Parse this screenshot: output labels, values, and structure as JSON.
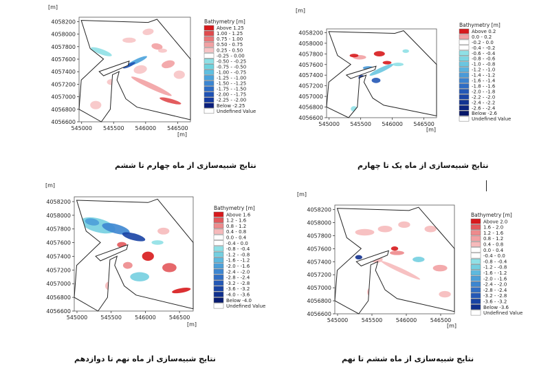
{
  "panels": [
    {
      "id": "p1",
      "unit_x": "[m]",
      "unit_y": "[m]",
      "xticks": [
        "545000",
        "545500",
        "546000",
        "546500"
      ],
      "yticks": [
        "4058200",
        "4058000",
        "4057800",
        "4057600",
        "4057400",
        "4057200",
        "4057000",
        "4056800",
        "4056600"
      ],
      "legend_title": "Bathymetry [m]",
      "legend": [
        {
          "label": "Above   1.25",
          "color": "#d7191c"
        },
        {
          "label": "1.00 -  1.25",
          "color": "#e04a4d"
        },
        {
          "label": "0.75 -  1.00",
          "color": "#ea7679"
        },
        {
          "label": "0.50 -  0.75",
          "color": "#f2a1a3"
        },
        {
          "label": "0.25 -  0.50",
          "color": "#f7c4c5"
        },
        {
          "label": "-0.25 -  0.00",
          "color": "#ffffff"
        },
        {
          "label": "-0.50 - -0.25",
          "color": "#8fe0e6"
        },
        {
          "label": "-0.75 - -0.50",
          "color": "#6fd3de"
        },
        {
          "label": "-1.00 - -0.75",
          "color": "#5fbfe0"
        },
        {
          "label": "-1.25 - -1.00",
          "color": "#4aa2dc"
        },
        {
          "label": "-1.50 - -1.25",
          "color": "#3b86d2"
        },
        {
          "label": "-1.75 - -1.50",
          "color": "#2c6cc6"
        },
        {
          "label": "-2.00 - -1.75",
          "color": "#1f52b4"
        },
        {
          "label": "-2.25 - -2.00",
          "color": "#143aa0"
        },
        {
          "label": "Below  -2.25",
          "color": "#0a1f7c"
        },
        {
          "label": "Undefined Value",
          "color": "#ffffff"
        }
      ],
      "caption": "نتایج شبیه‌سازی از ماه چهارم تا ششم"
    },
    {
      "id": "p2",
      "unit_x": "[m]",
      "unit_y": "[m]",
      "xticks": [
        "545000",
        "545500",
        "546000",
        "546500"
      ],
      "yticks": [
        "4058200",
        "4058000",
        "4057800",
        "4057600",
        "4057400",
        "4057200",
        "4057000",
        "4056800",
        "4056600"
      ],
      "legend_title": "Bathymetry [m]",
      "legend": [
        {
          "label": "Above   0.2",
          "color": "#d7191c"
        },
        {
          "label": "0.0 -  0.2",
          "color": "#f2a1a3"
        },
        {
          "label": "-0.2 -  0.0",
          "color": "#ffffff"
        },
        {
          "label": "-0.4 - -0.2",
          "color": "#ffffff"
        },
        {
          "label": "-0.6 - -0.4",
          "color": "#8fe0e6"
        },
        {
          "label": "-0.8 - -0.6",
          "color": "#7dd6e2"
        },
        {
          "label": "-1.0 - -0.8",
          "color": "#6ac6e0"
        },
        {
          "label": "-1.2 - -1.0",
          "color": "#5ab2de"
        },
        {
          "label": "-1.4 - -1.2",
          "color": "#4a9ad8"
        },
        {
          "label": "-1.6 - -1.4",
          "color": "#3c83d0"
        },
        {
          "label": "-1.8 - -1.6",
          "color": "#2f6cc4"
        },
        {
          "label": "-2.0 - -1.8",
          "color": "#2458b6"
        },
        {
          "label": "-2.2 - -2.0",
          "color": "#1a45a6"
        },
        {
          "label": "-2.4 - -2.2",
          "color": "#123392"
        },
        {
          "label": "-2.6 - -2.4",
          "color": "#0c2480"
        },
        {
          "label": "Below  -2.6",
          "color": "#06176a"
        },
        {
          "label": "Undefined Value",
          "color": "#ffffff"
        }
      ],
      "caption": "نتایج شبیه‌سازی از ماه یک تا چهارم"
    },
    {
      "id": "p3",
      "unit_x": "[m]",
      "unit_y": "[m]",
      "xticks": [
        "545000",
        "545500",
        "546000",
        "546500"
      ],
      "yticks": [
        "4058200",
        "4058000",
        "4057800",
        "4057600",
        "4057400",
        "4057200",
        "4057000",
        "4056800",
        "4056600"
      ],
      "legend_title": "Bathymetry [m]",
      "legend": [
        {
          "label": "Above   1.6",
          "color": "#d7191c"
        },
        {
          "label": "1.2 -  1.6",
          "color": "#e3585b"
        },
        {
          "label": "0.8 -  1.2",
          "color": "#ed8a8c"
        },
        {
          "label": "0.4 -  0.8",
          "color": "#f6babb"
        },
        {
          "label": "0.0 -  0.4",
          "color": "#ffffff"
        },
        {
          "label": "-0.4 -  0.0",
          "color": "#ffffff"
        },
        {
          "label": "-0.8 - -0.4",
          "color": "#8fe0e6"
        },
        {
          "label": "-1.2 - -0.8",
          "color": "#74cfe0"
        },
        {
          "label": "-1.6 - -1.2",
          "color": "#5eb9de"
        },
        {
          "label": "-2.0 - -1.6",
          "color": "#4c9fd8"
        },
        {
          "label": "-2.4 - -2.0",
          "color": "#3d86d0"
        },
        {
          "label": "-2.8 - -2.4",
          "color": "#306ec4"
        },
        {
          "label": "-3.2 - -2.8",
          "color": "#2458b6"
        },
        {
          "label": "-3.6 - -3.2",
          "color": "#1843a4"
        },
        {
          "label": "-4.0 - -3.6",
          "color": "#0f2f8e"
        },
        {
          "label": "Below  -4.0",
          "color": "#071b70"
        },
        {
          "label": "Undefined Value",
          "color": "#ffffff"
        }
      ],
      "caption": "نتایج شبیه‌سازی از ماه نهم تا دوازدهم"
    },
    {
      "id": "p4",
      "unit_x": "[m]",
      "unit_y": "[m]",
      "xticks": [
        "545000",
        "545500",
        "546000",
        "546500"
      ],
      "yticks": [
        "4058200",
        "4058000",
        "4057800",
        "4057600",
        "4057400",
        "4057200",
        "4057000",
        "4056800",
        "4056600"
      ],
      "legend_title": "Bathymetry [m]",
      "legend": [
        {
          "label": "Above   2.0",
          "color": "#d7191c"
        },
        {
          "label": "1.6 -  2.0",
          "color": "#e3585b"
        },
        {
          "label": "1.2 -  1.6",
          "color": "#ed8a8c"
        },
        {
          "label": "0.8 -  1.2",
          "color": "#f2a1a3"
        },
        {
          "label": "0.4 -  0.8",
          "color": "#f6babb"
        },
        {
          "label": "0.0 -  0.4",
          "color": "#ffffff"
        },
        {
          "label": "-0.4 -  0.0",
          "color": "#ffffff"
        },
        {
          "label": "-0.8 - -0.4",
          "color": "#8fe0e6"
        },
        {
          "label": "-1.2 - -0.8",
          "color": "#74cfe0"
        },
        {
          "label": "-1.6 - -1.2",
          "color": "#5eb9de"
        },
        {
          "label": "-2.0 - -1.6",
          "color": "#4c9fd8"
        },
        {
          "label": "-2.4 - -2.0",
          "color": "#3d86d0"
        },
        {
          "label": "-2.8 - -2.4",
          "color": "#306ec4"
        },
        {
          "label": "-3.2 - -2.8",
          "color": "#2458b6"
        },
        {
          "label": "-3.6 - -3.2",
          "color": "#1843a4"
        },
        {
          "label": "Below  -3.6",
          "color": "#0f2f8e"
        },
        {
          "label": "Undefined Value",
          "color": "#ffffff"
        }
      ],
      "caption": "نتایج شبیه‌سازی از ماه ششم تا نهم"
    }
  ],
  "chart_data": [
    {
      "type": "heatmap",
      "title": "",
      "xlabel": "[m]",
      "ylabel": "[m]",
      "xlim": [
        544960,
        546700
      ],
      "ylim": [
        4056600,
        4058270
      ],
      "xticks": [
        545000,
        545500,
        546000,
        546500
      ],
      "yticks": [
        4056600,
        4056800,
        4057000,
        4057200,
        4057400,
        4057600,
        4057800,
        4058000,
        4058200
      ],
      "legend_title": "Bathymetry [m]",
      "caption": "نتایج شبیه‌سازی از ماه چهارم تا ششم"
    },
    {
      "type": "heatmap",
      "title": "",
      "xlabel": "[m]",
      "ylabel": "[m]",
      "xlim": [
        544960,
        546700
      ],
      "ylim": [
        4056600,
        4058270
      ],
      "xticks": [
        545000,
        545500,
        546000,
        546500
      ],
      "yticks": [
        4056600,
        4056800,
        4057000,
        4057200,
        4057400,
        4057600,
        4057800,
        4058000,
        4058200
      ],
      "legend_title": "Bathymetry [m]",
      "caption": "نتایج شبیه‌سازی از ماه یک تا چهارم"
    },
    {
      "type": "heatmap",
      "title": "",
      "xlabel": "[m]",
      "ylabel": "[m]",
      "xlim": [
        544960,
        546700
      ],
      "ylim": [
        4056600,
        4058270
      ],
      "xticks": [
        545000,
        545500,
        546000,
        546500
      ],
      "yticks": [
        4056600,
        4056800,
        4057000,
        4057200,
        4057400,
        4057600,
        4057800,
        4058000,
        4058200
      ],
      "legend_title": "Bathymetry [m]",
      "caption": "نتایج شبیه‌سازی از ماه نهم تا دوازدهم"
    },
    {
      "type": "heatmap",
      "title": "",
      "xlabel": "[m]",
      "ylabel": "[m]",
      "xlim": [
        544960,
        546700
      ],
      "ylim": [
        4056600,
        4058270
      ],
      "xticks": [
        545000,
        545500,
        546000,
        546500
      ],
      "yticks": [
        4056600,
        4056800,
        4057000,
        4057200,
        4057400,
        4057600,
        4057800,
        4058000,
        4058200
      ],
      "legend_title": "Bathymetry [m]",
      "caption": "نتایج شبیه‌سازی از ماه ششم تا نهم"
    }
  ]
}
